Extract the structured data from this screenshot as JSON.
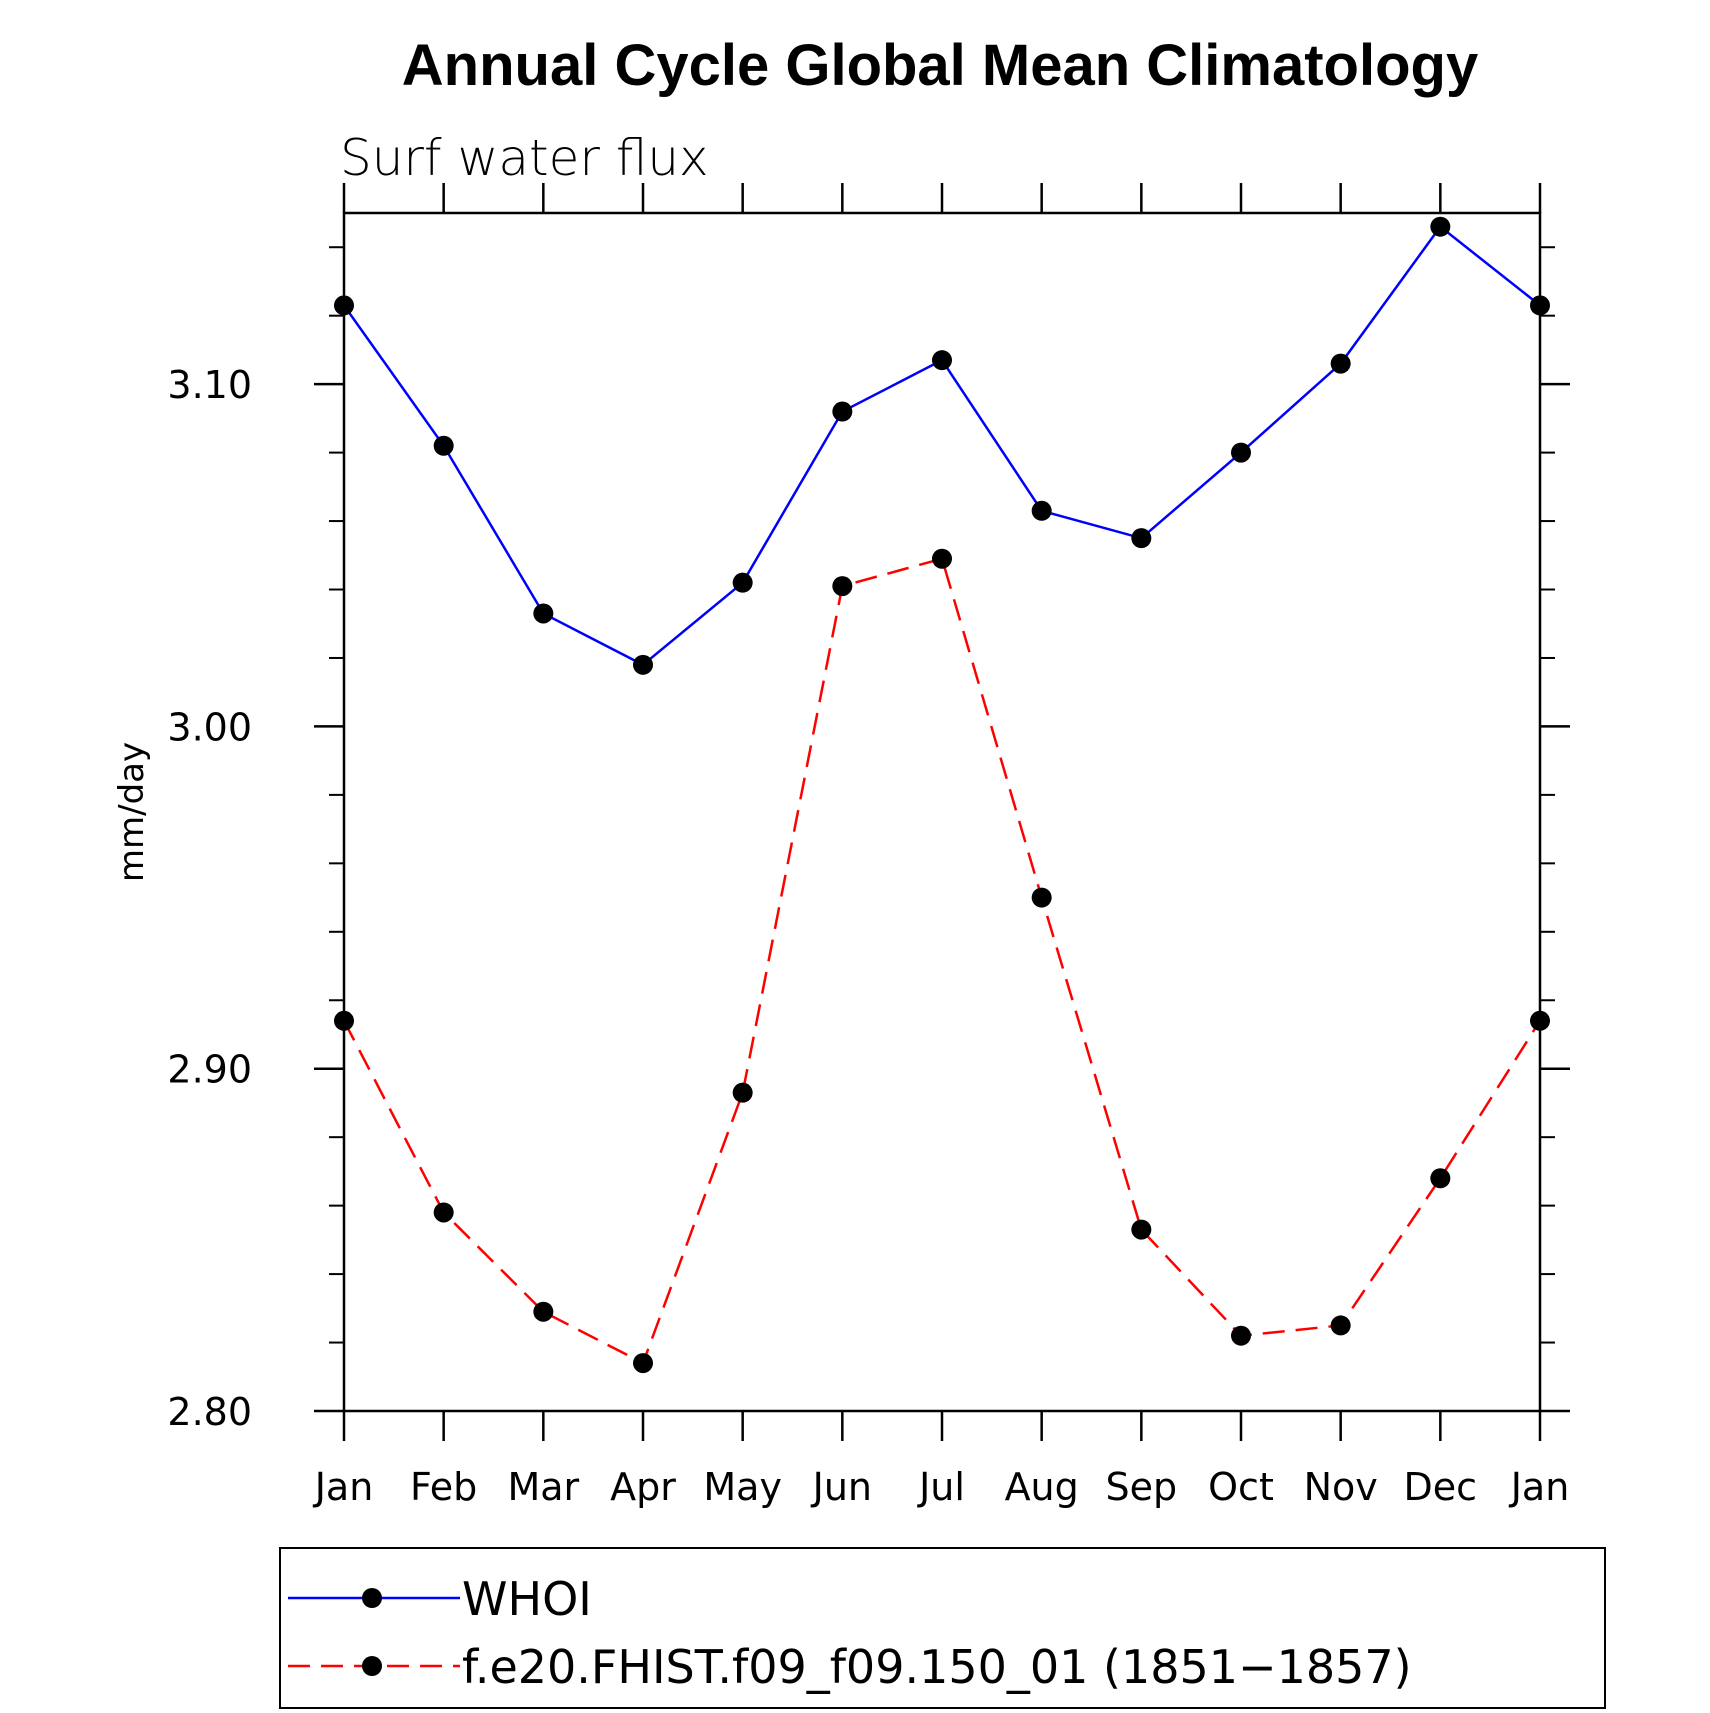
{
  "chart_data": {
    "type": "line",
    "title": "Annual Cycle Global Mean Climatology",
    "subtitle": "Surf water flux",
    "xlabel": "",
    "ylabel": "mm/day",
    "categories": [
      "Jan",
      "Feb",
      "Mar",
      "Apr",
      "May",
      "Jun",
      "Jul",
      "Aug",
      "Sep",
      "Oct",
      "Nov",
      "Dec",
      "Jan"
    ],
    "ylim": [
      2.8,
      3.15
    ],
    "yticks": [
      "2.80",
      "2.90",
      "3.00",
      "3.10"
    ],
    "ytick_values": [
      2.8,
      2.9,
      3.0,
      3.1
    ],
    "minor_step": 0.02,
    "grid": false,
    "legend_position": "bottom",
    "series": [
      {
        "name": "WHOI",
        "color": "#0000ff",
        "dash": "solid",
        "marker": "filled-circle",
        "values": [
          3.123,
          3.082,
          3.033,
          3.018,
          3.042,
          3.092,
          3.107,
          3.063,
          3.055,
          3.08,
          3.106,
          3.146,
          3.123
        ]
      },
      {
        "name": "f.e20.FHIST.f09_f09.150_01 (1851−1857)",
        "color": "#ff0000",
        "dash": "dashed",
        "marker": "filled-circle",
        "values": [
          2.914,
          2.858,
          2.829,
          2.814,
          2.893,
          3.041,
          3.049,
          2.95,
          2.853,
          2.822,
          2.825,
          2.868,
          2.914
        ]
      }
    ]
  }
}
